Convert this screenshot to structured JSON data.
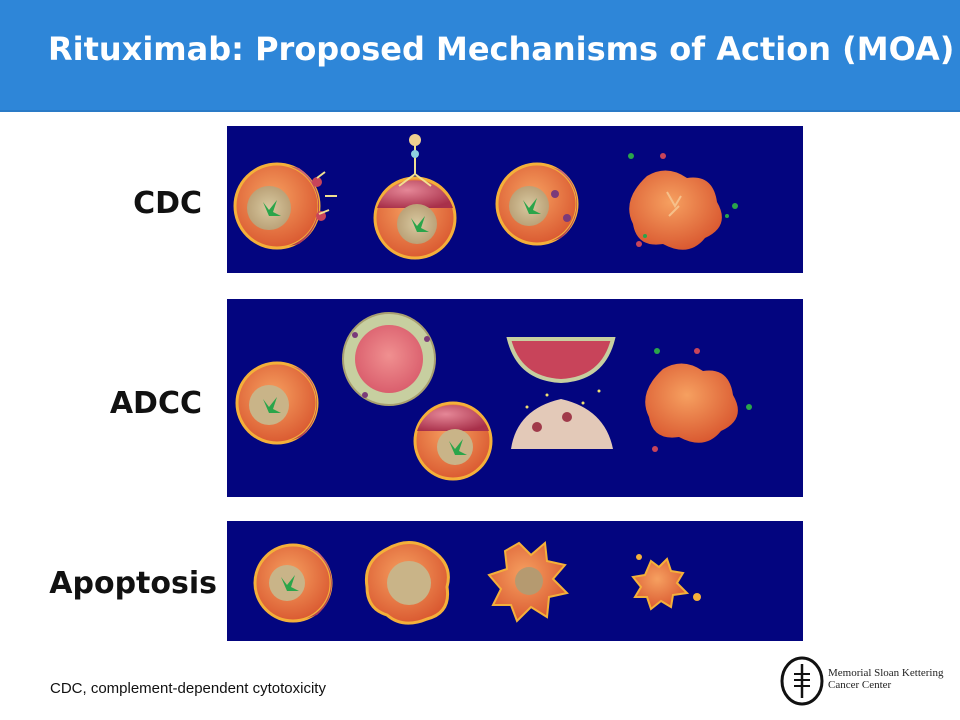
{
  "slide": {
    "title": "Rituximab: Proposed Mechanisms of Action (MOA)",
    "colors": {
      "title_bar": "#2e86d8",
      "panel_bg": "#03057f",
      "cell_membrane": "#f4b03a",
      "cell_body": "#c8445a"
    }
  },
  "rows": [
    {
      "label": "CDC"
    },
    {
      "label": "ADCC"
    },
    {
      "label": "Apoptosis"
    }
  ],
  "footnote": "CDC, complement-dependent cytotoxicity",
  "logo": {
    "line1": "Memorial Sloan Kettering",
    "line2": "Cancer Center",
    "icon": "msk-logo-icon"
  }
}
